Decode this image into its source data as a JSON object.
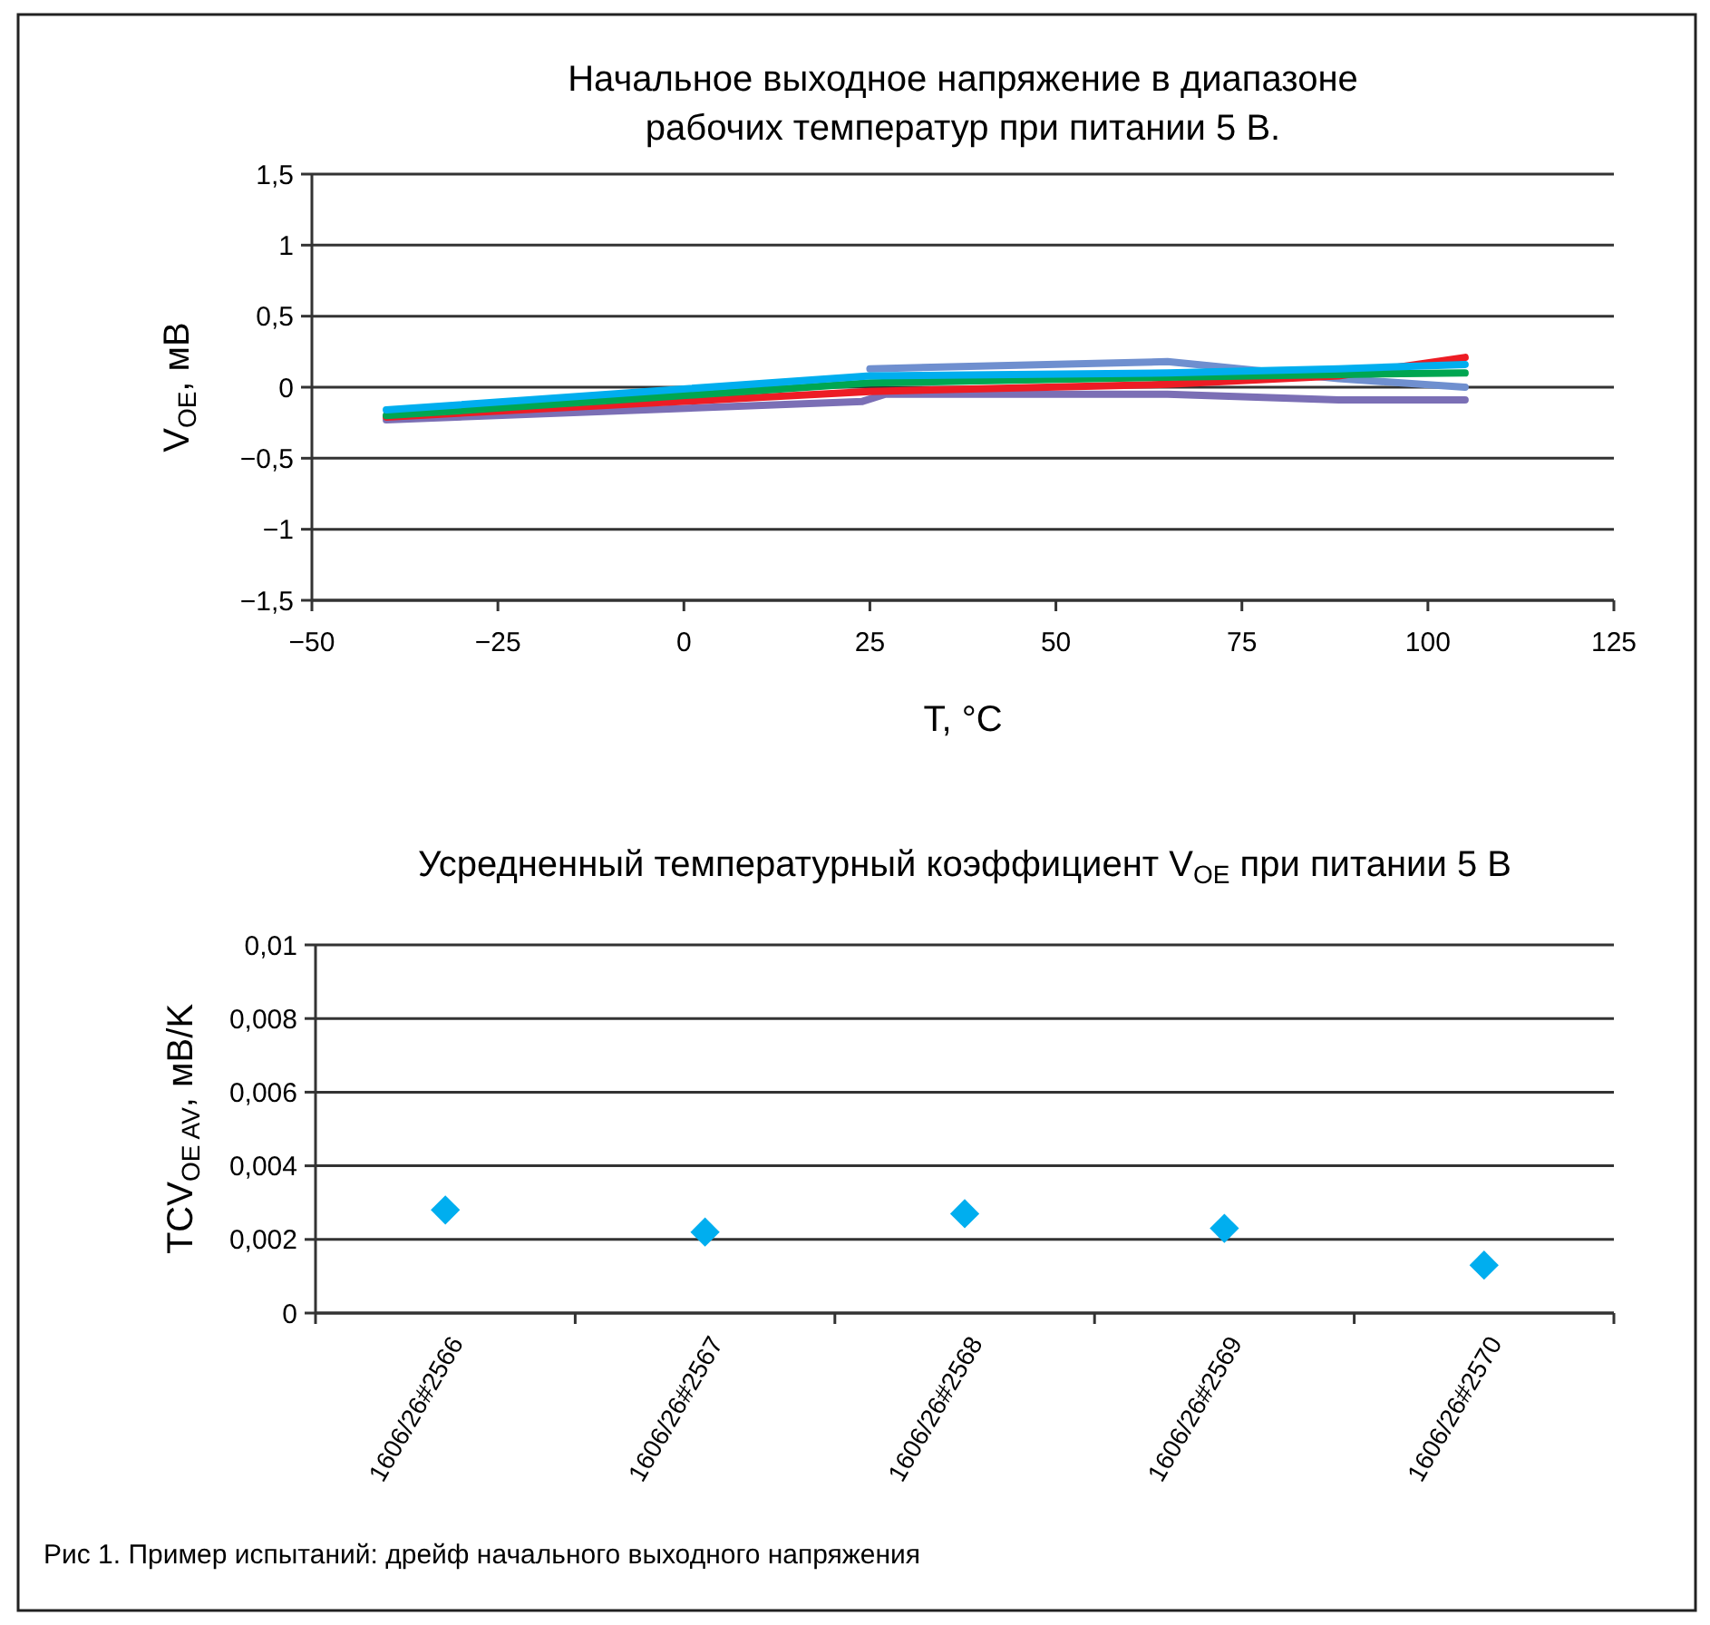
{
  "chart_data": [
    {
      "type": "line",
      "title": "Начальное выходное напряжение в диапазоне\nрабочих температур при питании 5 В.",
      "xlabel": "T, °C",
      "ylabel": "V$_{OE}$, мВ",
      "xlim": [
        -50,
        125
      ],
      "xticks": [
        {
          "value": -50,
          "label": "−50"
        },
        {
          "value": -25,
          "label": "−25"
        },
        {
          "value": 0,
          "label": "0"
        },
        25,
        50,
        75,
        100,
        125
      ],
      "ylim": [
        -1.5,
        1.5
      ],
      "yticks": [
        {
          "value": -1.5,
          "label": "−1,5"
        },
        {
          "value": -1,
          "label": "−1"
        },
        {
          "value": -0.5,
          "label": "−0,5"
        },
        {
          "value": 0,
          "label": "0"
        },
        {
          "value": 0.5,
          "label": "0,5"
        },
        1,
        {
          "value": 1.5,
          "label": "1,5"
        }
      ],
      "grid": "y",
      "marker": "none",
      "line_style": "solid",
      "series": [
        {
          "color": "#6f8fcf",
          "x": [
            25,
            65,
            88,
            105
          ],
          "values": [
            0.13,
            0.18,
            0.06,
            0.0
          ]
        },
        {
          "color": "#7b6fb5",
          "x": [
            -40,
            24,
            27,
            65,
            88,
            105
          ],
          "values": [
            -0.23,
            -0.1,
            -0.05,
            -0.05,
            -0.09,
            -0.09
          ]
        },
        {
          "color": "#ed1c24",
          "x": [
            -40,
            25,
            65,
            88,
            105
          ],
          "values": [
            -0.21,
            -0.03,
            0.02,
            0.08,
            0.21
          ]
        },
        {
          "color": "#00a651",
          "x": [
            -40,
            25,
            65,
            88,
            105
          ],
          "values": [
            -0.2,
            0.03,
            0.07,
            0.09,
            0.1
          ]
        },
        {
          "color": "#00aeef",
          "x": [
            -40,
            25,
            65,
            88,
            105
          ],
          "values": [
            -0.16,
            0.08,
            0.1,
            0.13,
            0.16
          ]
        }
      ]
    },
    {
      "type": "scatter",
      "title": "Усредненный температурный коэффициент V$_{OE}$ при питании 5 В",
      "ylabel": "TCV$_{OE AV}$, мВ/K",
      "categories": [
        "1606/26#2566",
        "1606/26#2567",
        "1606/26#2568",
        "1606/26#2569",
        "1606/26#2570"
      ],
      "ylim": [
        0,
        0.01
      ],
      "yticks": [
        {
          "value": 0,
          "label": "0"
        },
        {
          "value": 0.002,
          "label": "0,002"
        },
        {
          "value": 0.004,
          "label": "0,004"
        },
        {
          "value": 0.006,
          "label": "0,006"
        },
        {
          "value": 0.008,
          "label": "0,008"
        },
        {
          "value": 0.01,
          "label": "0,01"
        }
      ],
      "grid": "y",
      "marker": "diamond",
      "color": "#00aeef",
      "values": [
        0.0028,
        0.0022,
        0.0027,
        0.0023,
        0.0013
      ],
      "annotations": [
        "Рис 1. Пример испытаний: дрейф начального выходного напряжения"
      ]
    }
  ]
}
